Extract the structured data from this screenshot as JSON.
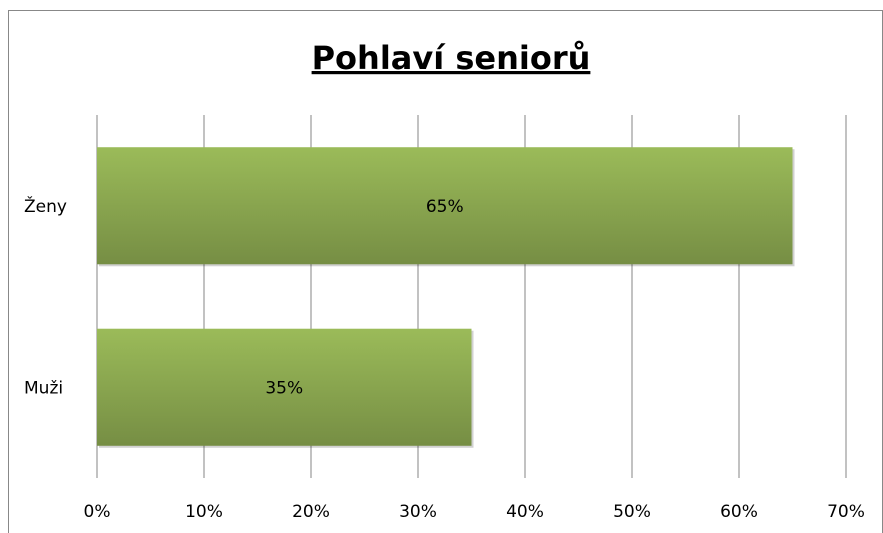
{
  "chart_data": {
    "type": "bar",
    "orientation": "horizontal",
    "title": "Pohlaví seniorů",
    "categories": [
      "Ženy",
      "Muži"
    ],
    "values": [
      65,
      35
    ],
    "value_labels": [
      "65%",
      "35%"
    ],
    "color": "#9bbb59",
    "xlim": [
      0,
      70
    ],
    "xticks": [
      {
        "value": 0,
        "label": "0%"
      },
      {
        "value": 10,
        "label": "10%"
      },
      {
        "value": 20,
        "label": "20%"
      },
      {
        "value": 30,
        "label": "30%"
      },
      {
        "value": 40,
        "label": "40%"
      },
      {
        "value": 50,
        "label": "50%"
      },
      {
        "value": 60,
        "label": "60%"
      },
      {
        "value": 70,
        "label": "70%"
      }
    ],
    "grid": true
  }
}
